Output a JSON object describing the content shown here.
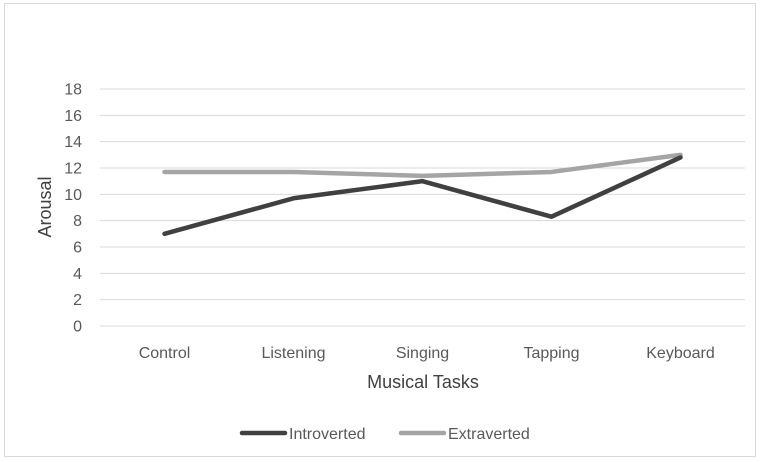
{
  "chart_data": {
    "type": "line",
    "title": "",
    "xlabel": "Musical Tasks",
    "ylabel": "Arousal",
    "categories": [
      "Control",
      "Listening",
      "Singing",
      "Tapping",
      "Keyboard"
    ],
    "ylim": [
      0,
      18
    ],
    "yticks": [
      "0",
      "2",
      "4",
      "6",
      "8",
      "10",
      "12",
      "14",
      "16",
      "18"
    ],
    "grid": true,
    "legend_position": "bottom",
    "series": [
      {
        "name": "Introverted",
        "values": [
          7.0,
          9.7,
          11.0,
          8.3,
          12.8
        ],
        "color": "#404040"
      },
      {
        "name": "Extraverted",
        "values": [
          11.7,
          11.7,
          11.4,
          11.7,
          13.0
        ],
        "color": "#a5a5a5"
      }
    ]
  }
}
